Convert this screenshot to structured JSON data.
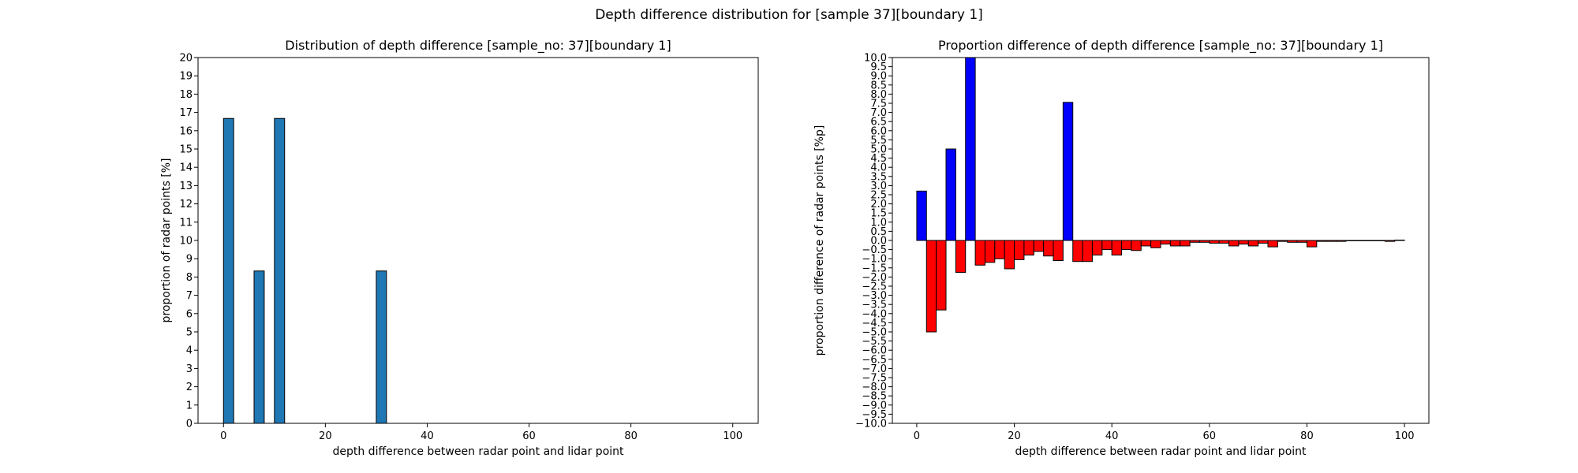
{
  "suptitle": "Depth difference distribution for [sample 37][boundary 1]",
  "chart_data": [
    {
      "type": "bar",
      "title": "Distribution of depth difference [sample_no: 37][boundary 1]",
      "xlabel": "depth difference between radar point and lidar point",
      "ylabel": "proportion of radar points [%]",
      "xlim": [
        -5,
        105
      ],
      "ylim": [
        0,
        20
      ],
      "xticks": [
        0,
        20,
        40,
        60,
        80,
        100
      ],
      "yticks": [
        0,
        1,
        2,
        3,
        4,
        5,
        6,
        7,
        8,
        9,
        10,
        11,
        12,
        13,
        14,
        15,
        16,
        17,
        18,
        19,
        20
      ],
      "bar_width": 2,
      "bar_color": "#1f77b4",
      "edge_color": "#000000",
      "x": [
        1,
        7,
        11,
        31
      ],
      "values": [
        16.67,
        8.33,
        16.67,
        8.33
      ]
    },
    {
      "type": "bar",
      "title": "Proportion difference of depth difference [sample_no: 37][boundary 1]",
      "xlabel": "depth difference between radar point and lidar point",
      "ylabel": "proportion difference of radar points [%p]",
      "xlim": [
        -5,
        105
      ],
      "ylim": [
        -10,
        10
      ],
      "xticks": [
        0,
        20,
        40,
        60,
        80,
        100
      ],
      "yticks": [
        -10,
        -9.5,
        -9,
        -8.5,
        -8,
        -7.5,
        -7,
        -6.5,
        -6,
        -5.5,
        -5,
        -4.5,
        -4,
        -3.5,
        -3,
        -2.5,
        -2,
        -1.5,
        -1,
        -0.5,
        0,
        0.5,
        1,
        1.5,
        2,
        2.5,
        3,
        3.5,
        4,
        4.5,
        5,
        5.5,
        6,
        6.5,
        7,
        7.5,
        8,
        8.5,
        9,
        9.5,
        10
      ],
      "bar_width": 2,
      "positive_color": "#0000ff",
      "negative_color": "#ff0000",
      "edge_color": "#000000",
      "x": [
        1,
        3,
        5,
        7,
        9,
        11,
        13,
        15,
        17,
        19,
        21,
        23,
        25,
        27,
        29,
        31,
        33,
        35,
        37,
        39,
        41,
        43,
        45,
        47,
        49,
        51,
        53,
        55,
        57,
        59,
        61,
        63,
        65,
        67,
        69,
        71,
        73,
        75,
        77,
        79,
        81,
        83,
        85,
        87,
        89,
        91,
        93,
        95,
        97,
        99
      ],
      "values": [
        2.7,
        -5.0,
        -3.8,
        5.0,
        -1.75,
        10.0,
        -1.35,
        -1.2,
        -1.0,
        -1.55,
        -1.05,
        -0.8,
        -0.6,
        -0.85,
        -1.1,
        7.55,
        -1.15,
        -1.15,
        -0.8,
        -0.5,
        -0.8,
        -0.5,
        -0.55,
        -0.3,
        -0.4,
        -0.2,
        -0.3,
        -0.3,
        -0.1,
        -0.1,
        -0.15,
        -0.15,
        -0.3,
        -0.2,
        -0.3,
        -0.15,
        -0.35,
        -0.05,
        -0.1,
        -0.1,
        -0.35,
        -0.05,
        -0.05,
        -0.05,
        -0.02,
        -0.02,
        -0.02,
        -0.02,
        -0.05,
        0.02
      ]
    }
  ]
}
